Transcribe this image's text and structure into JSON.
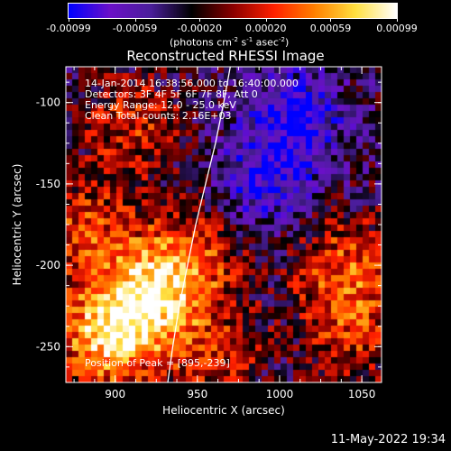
{
  "colorbar": {
    "ticks": [
      "-0.00099",
      "-0.00059",
      "-0.00020",
      "0.00020",
      "0.00059",
      "0.00099"
    ],
    "tick_values": [
      -0.00099,
      -0.00059,
      -0.0002,
      0.0002,
      0.00059,
      0.00099
    ],
    "range": [
      -0.00099,
      0.00099
    ],
    "unit_main": "(photons cm",
    "unit_exp1": "-2",
    "unit_mid": " s",
    "unit_exp2": "-1",
    "unit_mid2": " asec",
    "unit_exp3": "-2",
    "unit_end": ")",
    "colors": [
      "#0000ff",
      "#6b10c8",
      "#4a1e9a",
      "#000000",
      "#8a0000",
      "#ff2000",
      "#ff8000",
      "#ffe040",
      "#ffffff"
    ]
  },
  "chart_data": {
    "type": "heatmap",
    "title": "Reconstructed RHESSI Image",
    "xlabel": "Heliocentric X (arcsec)",
    "ylabel": "Heliocentric Y (arcsec)",
    "xlim": [
      870,
      1062
    ],
    "ylim": [
      -272,
      -78
    ],
    "xticks": [
      900,
      950,
      1000,
      1050
    ],
    "yticks": [
      -100,
      -150,
      -200,
      -250
    ],
    "limb_curve": [
      [
        970,
        -78
      ],
      [
        966,
        -100
      ],
      [
        961,
        -125
      ],
      [
        955,
        -150
      ],
      [
        949,
        -175
      ],
      [
        944,
        -200
      ],
      [
        939,
        -225
      ],
      [
        935,
        -250
      ],
      [
        932,
        -272
      ]
    ],
    "peak_position": [
      895,
      -239
    ],
    "regions": [
      {
        "x": 895,
        "y": -245,
        "intensity": 1.0
      },
      {
        "x": 920,
        "y": -220,
        "intensity": 0.9
      },
      {
        "x": 880,
        "y": -180,
        "intensity": 0.6
      },
      {
        "x": 910,
        "y": -115,
        "intensity": 0.5
      },
      {
        "x": 945,
        "y": -195,
        "intensity": 0.65
      },
      {
        "x": 1040,
        "y": -200,
        "intensity": 0.6
      },
      {
        "x": 1045,
        "y": -240,
        "intensity": 0.5
      },
      {
        "x": 960,
        "y": -255,
        "intensity": 0.45
      },
      {
        "x": 990,
        "y": -150,
        "intensity": -0.5
      },
      {
        "x": 1010,
        "y": -110,
        "intensity": -0.6
      }
    ]
  },
  "annotations": {
    "time_range": "14-Jan-2014 16:38:56.000 to 16:40:00.000",
    "detectors": "Detectors: 3F 4F 5F 6F 7F 8F, Att 0",
    "energy": "Energy Range: 12.0 - 25.0 keV",
    "clean": "Clean     Total counts: 2.16E+03",
    "peak": "Position of Peak = [895,-239]"
  },
  "footer": {
    "date": "11-May-2022 19:34"
  }
}
